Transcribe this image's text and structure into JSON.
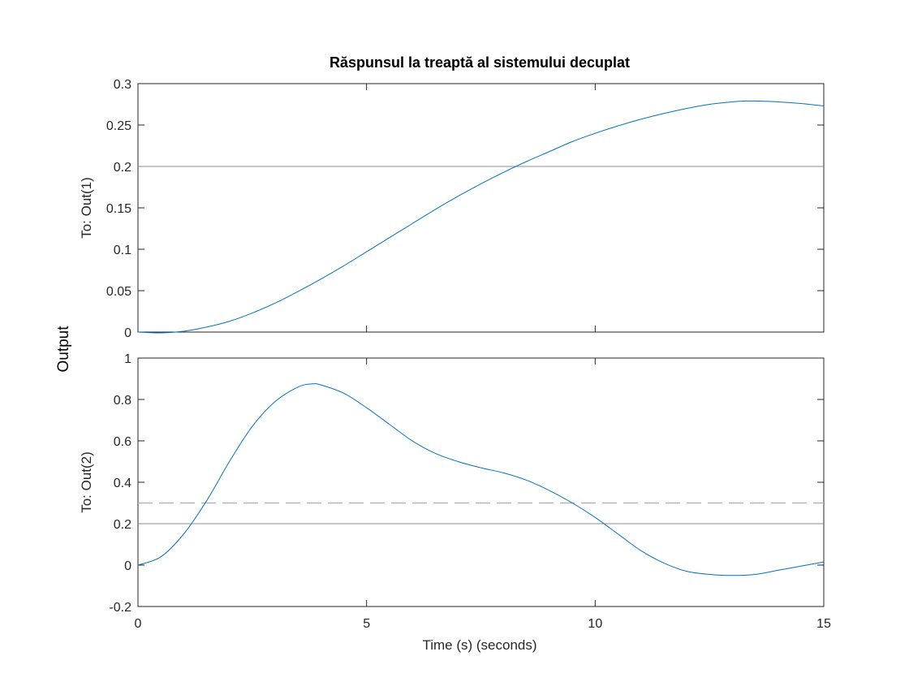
{
  "chart_data": {
    "type": "line",
    "title": "Răspunsul la treaptă al sistemului decuplat",
    "ylabel": "Output",
    "xlabel": "Time (s) (seconds)",
    "xlim": [
      0,
      15
    ],
    "xticks": [
      0,
      5,
      10,
      15
    ],
    "xtick_labels": [
      "0",
      "5",
      "10",
      "15"
    ],
    "grid": false,
    "line_color": "#0072bd",
    "reference_line_color": "#8c8c8c",
    "dashed_line_color": "#b3b3b3",
    "axes_color": "#262626",
    "panels": [
      {
        "ylabel": "To: Out(1)",
        "ylim": [
          0,
          0.3
        ],
        "yticks": [
          0,
          0.05,
          0.1,
          0.15,
          0.2,
          0.25,
          0.3
        ],
        "ytick_labels": [
          "0",
          "0.05",
          "0.1",
          "0.15",
          "0.2",
          "0.25",
          "0.3"
        ],
        "reference_line": 0.2,
        "series": [
          {
            "x": [
              0,
              0.5,
              1,
              1.5,
              2,
              2.5,
              3,
              3.5,
              4,
              4.5,
              5,
              5.5,
              6,
              6.5,
              7,
              7.5,
              8,
              8.5,
              9,
              9.5,
              10,
              10.5,
              11,
              11.5,
              12,
              12.5,
              13,
              13.3,
              13.5,
              14,
              14.5,
              15
            ],
            "y": [
              0,
              -0.001,
              0.001,
              0.006,
              0.013,
              0.023,
              0.035,
              0.049,
              0.064,
              0.08,
              0.097,
              0.114,
              0.131,
              0.148,
              0.164,
              0.179,
              0.193,
              0.206,
              0.218,
              0.23,
              0.24,
              0.249,
              0.257,
              0.264,
              0.27,
              0.275,
              0.278,
              0.279,
              0.279,
              0.278,
              0.276,
              0.273
            ]
          }
        ]
      },
      {
        "ylabel": "To: Out(2)",
        "ylim": [
          -0.2,
          1
        ],
        "yticks": [
          -0.2,
          0,
          0.2,
          0.4,
          0.6,
          0.8,
          1
        ],
        "ytick_labels": [
          "-0.2",
          "0",
          "0.2",
          "0.4",
          "0.6",
          "0.8",
          "1"
        ],
        "reference_line": 0.2,
        "dashed_line": 0.3,
        "series": [
          {
            "x": [
              0,
              0.5,
              1,
              1.5,
              2,
              2.5,
              3,
              3.5,
              3.8,
              4,
              4.5,
              5,
              5.5,
              6,
              6.5,
              7,
              7.5,
              8,
              8.5,
              9,
              9.5,
              10,
              10.5,
              11,
              11.5,
              12,
              12.5,
              13,
              13.5,
              14,
              14.5,
              15
            ],
            "y": [
              0,
              0.04,
              0.15,
              0.31,
              0.5,
              0.67,
              0.79,
              0.86,
              0.875,
              0.87,
              0.83,
              0.76,
              0.68,
              0.6,
              0.54,
              0.5,
              0.47,
              0.445,
              0.41,
              0.36,
              0.3,
              0.23,
              0.15,
              0.07,
              0.01,
              -0.03,
              -0.045,
              -0.05,
              -0.045,
              -0.025,
              -0.005,
              0.015
            ]
          }
        ]
      }
    ]
  }
}
